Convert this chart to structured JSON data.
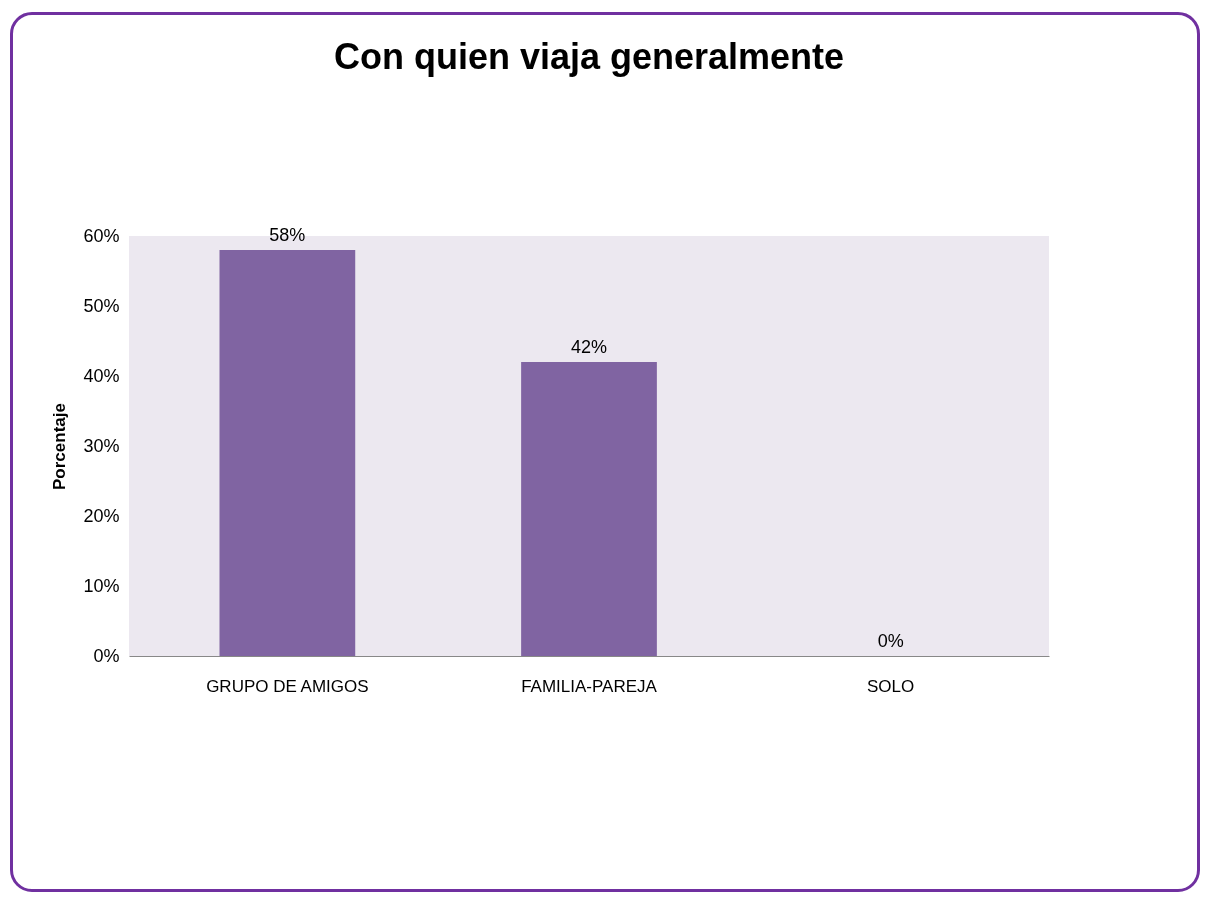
{
  "chart_data": {
    "type": "bar",
    "title": "Con quien viaja generalmente",
    "ylabel": "Porcentaje",
    "categories": [
      "GRUPO DE AMIGOS",
      "FAMILIA-PAREJA",
      "SOLO"
    ],
    "values": [
      58,
      42,
      0
    ],
    "value_labels": [
      "58%",
      "42%",
      "0%"
    ],
    "color": "#8064a2",
    "ylim": [
      0,
      60
    ],
    "yticks": [
      {
        "value": 0,
        "label": "0%"
      },
      {
        "value": 10,
        "label": "10%"
      },
      {
        "value": 20,
        "label": "20%"
      },
      {
        "value": 30,
        "label": "30%"
      },
      {
        "value": 40,
        "label": "40%"
      },
      {
        "value": 50,
        "label": "50%"
      },
      {
        "value": 60,
        "label": "60%"
      }
    ],
    "grid": false
  }
}
